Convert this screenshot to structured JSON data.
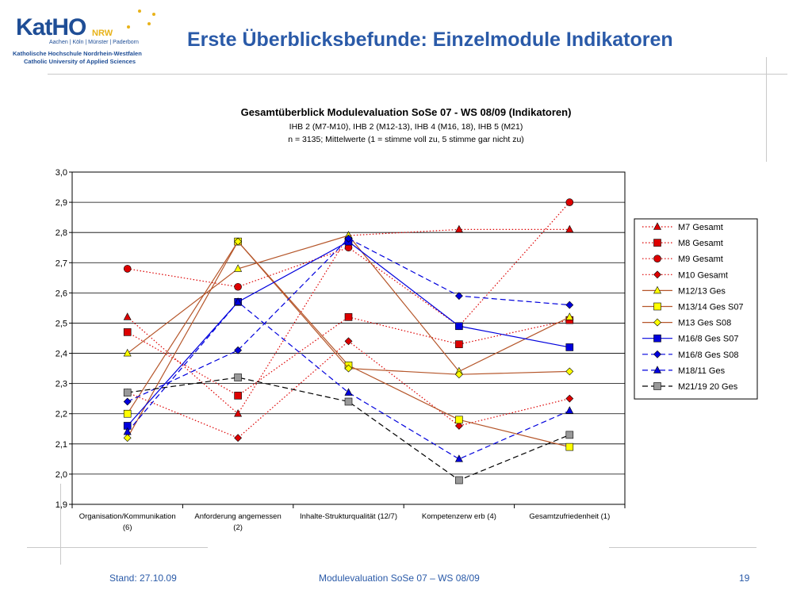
{
  "header": {
    "logo_name": "KatHO",
    "logo_nrw": "NRW",
    "logo_cities": "Aachen | Köln | Münster | Paderborn",
    "logo_line1": "Katholische Hochschule Nordrhein-Westfalen",
    "logo_line2": "Catholic University of Applied Sciences",
    "title": "Erste Überblicksbefunde: Einzelmodule Indikatoren"
  },
  "footer": {
    "stand": "Stand: 27.10.09",
    "center": "Modulevaluation SoSe 07 – WS 08/09",
    "page": "19"
  },
  "colors": {
    "accent": "#2a5aa8",
    "red": "#dd0000",
    "brown": "#b5562a",
    "yellow": "#ffff00",
    "blue": "#0000dd",
    "gray": "#999999",
    "logo_yellow": "#e8b31a"
  },
  "chart_data": {
    "type": "line",
    "title": "Gesamtüberblick Modulevaluation SoSe 07 - WS 08/09 (Indikatoren)",
    "subtitle1": "IHB 2 (M7-M10), IHB 2 (M12-13), IHB 4 (M16, 18), IHB 5 (M21)",
    "subtitle2": "n = 3135; Mittelwerte (1 = stimme voll zu, 5 stimme gar nicht zu)",
    "categories": [
      [
        "Organisation/Kommunikation",
        "(6)"
      ],
      [
        "Anforderung angemessen",
        "(2)"
      ],
      [
        "Inhalte-Strukturqualität (12/7)"
      ],
      [
        "Kompetenzerw erb (4)"
      ],
      [
        "Gesamtzufriedenheit (1)"
      ]
    ],
    "ylim": [
      1.9,
      3.0
    ],
    "yticks": [
      "3,0",
      "2,9",
      "2,8",
      "2,7",
      "2,6",
      "2,5",
      "2,4",
      "2,3",
      "2,2",
      "2,1",
      "2,0",
      "1,9"
    ],
    "legend_position": "right",
    "series": [
      {
        "name": "M7 Gesamt",
        "values": [
          2.52,
          2.2,
          2.79,
          2.81,
          2.81
        ],
        "line": "#dd0000",
        "dash": "dot",
        "marker": "triangle",
        "fill": "#dd0000"
      },
      {
        "name": "M8 Gesamt",
        "values": [
          2.47,
          2.26,
          2.52,
          2.43,
          2.51
        ],
        "line": "#dd0000",
        "dash": "dot",
        "marker": "square",
        "fill": "#dd0000"
      },
      {
        "name": "M9 Gesamt",
        "values": [
          2.68,
          2.62,
          2.75,
          2.49,
          2.9
        ],
        "line": "#dd0000",
        "dash": "dot",
        "marker": "circle",
        "fill": "#dd0000"
      },
      {
        "name": "M10 Gesamt",
        "values": [
          2.27,
          2.12,
          2.44,
          2.16,
          2.25
        ],
        "line": "#dd0000",
        "dash": "dot",
        "marker": "diamond",
        "fill": "#dd0000"
      },
      {
        "name": "M12/13 Ges",
        "values": [
          2.4,
          2.68,
          2.79,
          2.34,
          2.52
        ],
        "line": "#b5562a",
        "dash": "solid",
        "marker": "triangle",
        "fill": "#ffff00"
      },
      {
        "name": "M13/14 Ges S07",
        "values": [
          2.2,
          2.77,
          2.36,
          2.18,
          2.09
        ],
        "line": "#b5562a",
        "dash": "solid",
        "marker": "square",
        "fill": "#ffff00"
      },
      {
        "name": "M13 Ges S08",
        "values": [
          2.12,
          2.77,
          2.35,
          2.33,
          2.34
        ],
        "line": "#b5562a",
        "dash": "solid",
        "marker": "diamond",
        "fill": "#ffff00"
      },
      {
        "name": "M16/8 Ges S07",
        "values": [
          2.16,
          2.57,
          2.77,
          2.49,
          2.42
        ],
        "line": "#0000dd",
        "dash": "solid",
        "marker": "square",
        "fill": "#0000dd"
      },
      {
        "name": "M16/8 Ges S08",
        "values": [
          2.24,
          2.41,
          2.78,
          2.59,
          2.56
        ],
        "line": "#0000dd",
        "dash": "dash",
        "marker": "diamond",
        "fill": "#0000dd"
      },
      {
        "name": "M18/11 Ges",
        "values": [
          2.14,
          2.57,
          2.27,
          2.05,
          2.21
        ],
        "line": "#0000dd",
        "dash": "dash",
        "marker": "triangle",
        "fill": "#0000dd"
      },
      {
        "name": "M21/19 20 Ges",
        "values": [
          2.27,
          2.32,
          2.24,
          1.98,
          2.13
        ],
        "line": "#000000",
        "dash": "dash",
        "marker": "square",
        "fill": "#999999"
      }
    ]
  }
}
